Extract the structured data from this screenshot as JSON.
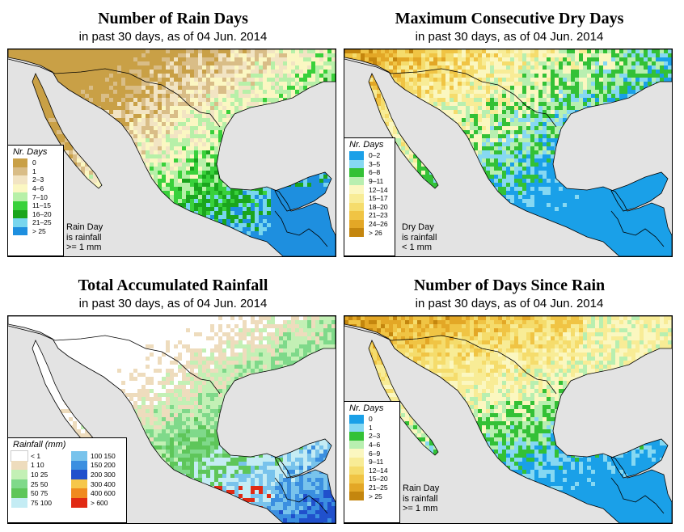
{
  "panels": [
    {
      "id": "rain-days",
      "title": "Number of Rain Days",
      "subtitle": "in past 30 days, as of  04 Jun. 2014",
      "legend_title": "Nr. Days",
      "legend": [
        {
          "label": "0",
          "color": "#c9a046"
        },
        {
          "label": "1",
          "color": "#d9bd87"
        },
        {
          "label": "2–3",
          "color": "#f2e4c3"
        },
        {
          "label": "4–6",
          "color": "#fbf7c2"
        },
        {
          "label": "7–10",
          "color": "#b7f0a8"
        },
        {
          "label": "11–15",
          "color": "#39d13b"
        },
        {
          "label": "16–20",
          "color": "#1aa51d"
        },
        {
          "label": "21–25",
          "color": "#78d6ee"
        },
        {
          "label": "> 25",
          "color": "#1e8fdf"
        }
      ],
      "note": [
        "Rain Day",
        "is rainfall",
        ">= 1 mm"
      ]
    },
    {
      "id": "dry-days",
      "title": "Maximum Consecutive Dry Days",
      "subtitle": "in past 30 days, as of  04 Jun. 2014",
      "legend_title": "Nr. Days",
      "legend": [
        {
          "label": "0–2",
          "color": "#1aa0e8"
        },
        {
          "label": "3–5",
          "color": "#86d8f2"
        },
        {
          "label": "6–8",
          "color": "#33c136"
        },
        {
          "label": "9–11",
          "color": "#b8efb0"
        },
        {
          "label": "12–14",
          "color": "#fbf7c0"
        },
        {
          "label": "15–17",
          "color": "#f8ec96"
        },
        {
          "label": "18–20",
          "color": "#f5dc6c"
        },
        {
          "label": "21–23",
          "color": "#f0c444"
        },
        {
          "label": "24–26",
          "color": "#e3a726"
        },
        {
          "label": "> 26",
          "color": "#c4860e"
        }
      ],
      "note": [
        "Dry Day",
        "is rainfall",
        "< 1 mm"
      ]
    },
    {
      "id": "total-rain",
      "title": "Total Accumulated Rainfall",
      "subtitle": "in past 30 days, as of  04 Jun. 2014",
      "legend_title": "Rainfall (mm)",
      "legend": [
        {
          "label": "< 1",
          "color": "#ffffff"
        },
        {
          "label": "1    10",
          "color": "#eedcbd"
        },
        {
          "label": "10   25",
          "color": "#c3f0b5"
        },
        {
          "label": "25   50",
          "color": "#7fd98a"
        },
        {
          "label": "50   75",
          "color": "#5ec65a"
        },
        {
          "label": "75  100",
          "color": "#c4ecf4"
        },
        {
          "label": "100  150",
          "color": "#78c3ec"
        },
        {
          "label": "150  200",
          "color": "#3b8fe0"
        },
        {
          "label": "200  300",
          "color": "#2050cc"
        },
        {
          "label": "300  400",
          "color": "#f6c74a"
        },
        {
          "label": "400  600",
          "color": "#f08a1f"
        },
        {
          "label": "> 600",
          "color": "#e12a13"
        }
      ],
      "note": []
    },
    {
      "id": "since-rain",
      "title": "Number of Days Since Rain",
      "subtitle": "in past 30 days, as of  04 Jun. 2014",
      "legend_title": "Nr. Days",
      "legend": [
        {
          "label": "0",
          "color": "#1aa0e8"
        },
        {
          "label": "1",
          "color": "#86d8f2"
        },
        {
          "label": "2–3",
          "color": "#33c136"
        },
        {
          "label": "4–6",
          "color": "#b8efb0"
        },
        {
          "label": "6–9",
          "color": "#fbf7c0"
        },
        {
          "label": "9–11",
          "color": "#f8ec96"
        },
        {
          "label": "12–14",
          "color": "#f5dc6c"
        },
        {
          "label": "15–20",
          "color": "#f0c444"
        },
        {
          "label": "21–25",
          "color": "#e3a726"
        },
        {
          "label": "> 25",
          "color": "#c4860e"
        }
      ],
      "note": [
        "Rain Day",
        "is rainfall",
        ">= 1 mm"
      ]
    }
  ],
  "map_colors": {
    "ocean": "#e3e3e3",
    "land": "#dcdcdc"
  }
}
